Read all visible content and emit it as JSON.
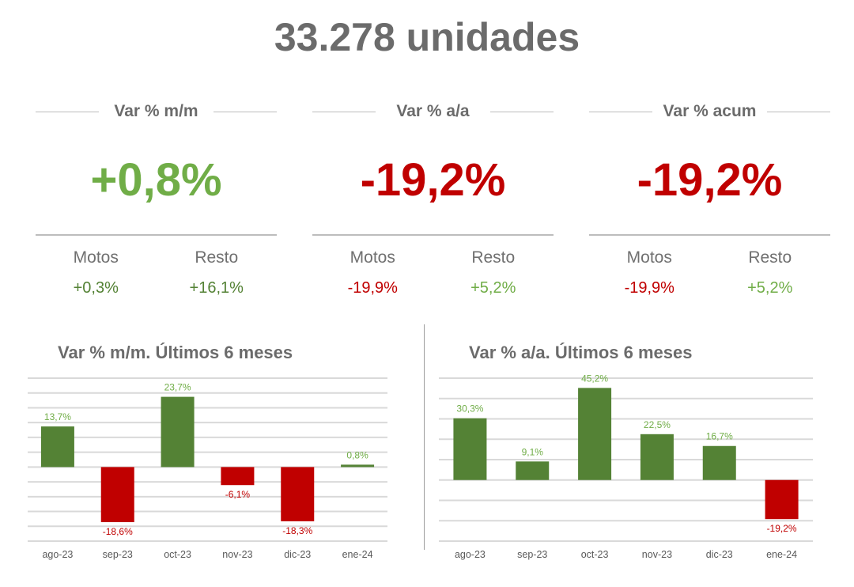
{
  "title": "33.278 unidades",
  "colors": {
    "green": "#548235",
    "red": "#C00000",
    "green_text": "#70AD47",
    "red_text": "#C00000"
  },
  "kpis": [
    {
      "label": "Var % m/m",
      "value": "+0,8%",
      "sign": "pos",
      "motos_label": "Motos",
      "motos": "+0,3%",
      "motos_sign": "dpos",
      "resto_label": "Resto",
      "resto": "+16,1%",
      "resto_sign": "dpos"
    },
    {
      "label": "Var % a/a",
      "value": "-19,2%",
      "sign": "neg",
      "motos_label": "Motos",
      "motos": "-19,9%",
      "motos_sign": "neg",
      "resto_label": "Resto",
      "resto": "+5,2%",
      "resto_sign": "pos"
    },
    {
      "label": "Var % acum",
      "value": "-19,2%",
      "sign": "neg",
      "motos_label": "Motos",
      "motos": "-19,9%",
      "motos_sign": "neg",
      "resto_label": "Resto",
      "resto": "+5,2%",
      "resto_sign": "pos"
    }
  ],
  "chart_data": [
    {
      "type": "bar",
      "title": "Var % m/m. Últimos 6 meses",
      "categories": [
        "ago-23",
        "sep-23",
        "oct-23",
        "nov-23",
        "dic-23",
        "ene-24"
      ],
      "values": [
        13.7,
        -18.6,
        23.7,
        -6.1,
        -18.3,
        0.8
      ],
      "labels": [
        "13,7%",
        "-18,6%",
        "23,7%",
        "-6,1%",
        "-18,3%",
        "0,8%"
      ],
      "ylim": [
        -25,
        30
      ],
      "ystep": 5,
      "grid": true
    },
    {
      "type": "bar",
      "title": "Var % a/a. Últimos 6 meses",
      "categories": [
        "ago-23",
        "sep-23",
        "oct-23",
        "nov-23",
        "dic-23",
        "ene-24"
      ],
      "values": [
        30.3,
        9.1,
        45.2,
        22.5,
        16.7,
        -19.2
      ],
      "labels": [
        "30,3%",
        "9,1%",
        "45,2%",
        "22,5%",
        "16,7%",
        "-19,2%"
      ],
      "ylim": [
        -30,
        50
      ],
      "ystep": 10,
      "grid": true
    }
  ]
}
